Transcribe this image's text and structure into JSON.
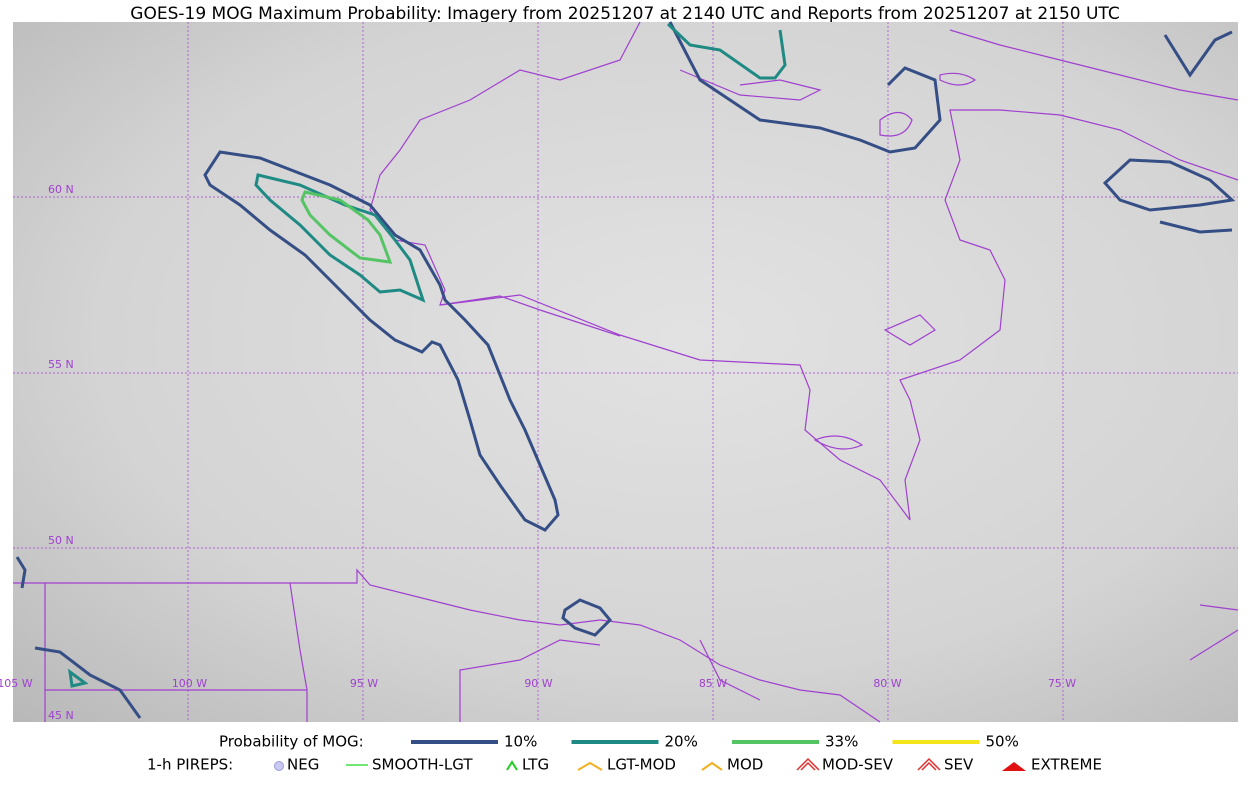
{
  "title": "GOES-19 MOG Maximum Probability: Imagery from 20251207 at 2140 UTC and Reports from 20251207 at 2150 UTC",
  "grid_labels": {
    "lat": [
      "60 N",
      "55 N",
      "50 N",
      "45 N"
    ],
    "lon": [
      "105 W",
      "100 W",
      "95 W",
      "90 W",
      "85 W",
      "80 W",
      "75 W"
    ]
  },
  "legend": {
    "probability_label": "Probability of MOG:",
    "probability_items": [
      {
        "label": "10%",
        "color": "#354e85"
      },
      {
        "label": "20%",
        "color": "#1f8a84"
      },
      {
        "label": "33%",
        "color": "#55c465"
      },
      {
        "label": "50%",
        "color": "#f5e31b"
      }
    ],
    "pireps_label": "1-h PIREPS:",
    "pireps_items": [
      "NEG",
      "SMOOTH-LGT",
      "LTG",
      "LGT-MOD",
      "MOD",
      "MOD-SEV",
      "SEV",
      "EXTREME"
    ]
  }
}
